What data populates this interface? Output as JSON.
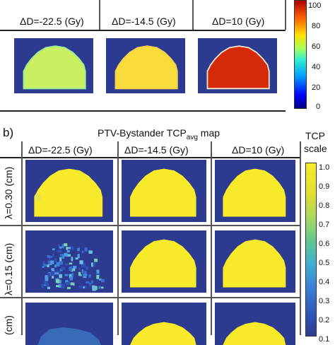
{
  "panel_a": {
    "headers": [
      "ΔD=-22.5 (Gy)",
      "ΔD=-14.5 (Gy)",
      "ΔD=10 (Gy)"
    ],
    "colorbar_ticks": [
      "100",
      "80",
      "60",
      "40",
      "20",
      "0"
    ],
    "fills": [
      "#c9f060",
      "#f8dc3c",
      "#d42a0a"
    ],
    "blob_edge": [
      "#9fe8a0",
      "#f4d050",
      "#f0e8d0"
    ]
  },
  "panel_b": {
    "label": "b)",
    "title_prefix": "PTV-Bystander TCP",
    "title_sub": "avg",
    "title_suffix": " map",
    "headers": [
      "ΔD=-22.5 (Gy)",
      "ΔD=-14.5 (Gy)",
      "ΔD=10 (Gy)"
    ],
    "rows": [
      "λ=0.30 (cm)",
      "λ=0.15 (cm)",
      "(cm)"
    ],
    "scale_label_line1": "TCP",
    "scale_label_line2": "scale",
    "scale_ticks": [
      "1.0",
      "0.9",
      "0.8",
      "0.7",
      "0.6",
      "0.5",
      "0.4",
      "0.3",
      "0.2",
      "0.1"
    ]
  },
  "colors": {
    "background": "#2c3a8f",
    "yellow": "#f7ea2a",
    "red": "#d42a0a"
  }
}
